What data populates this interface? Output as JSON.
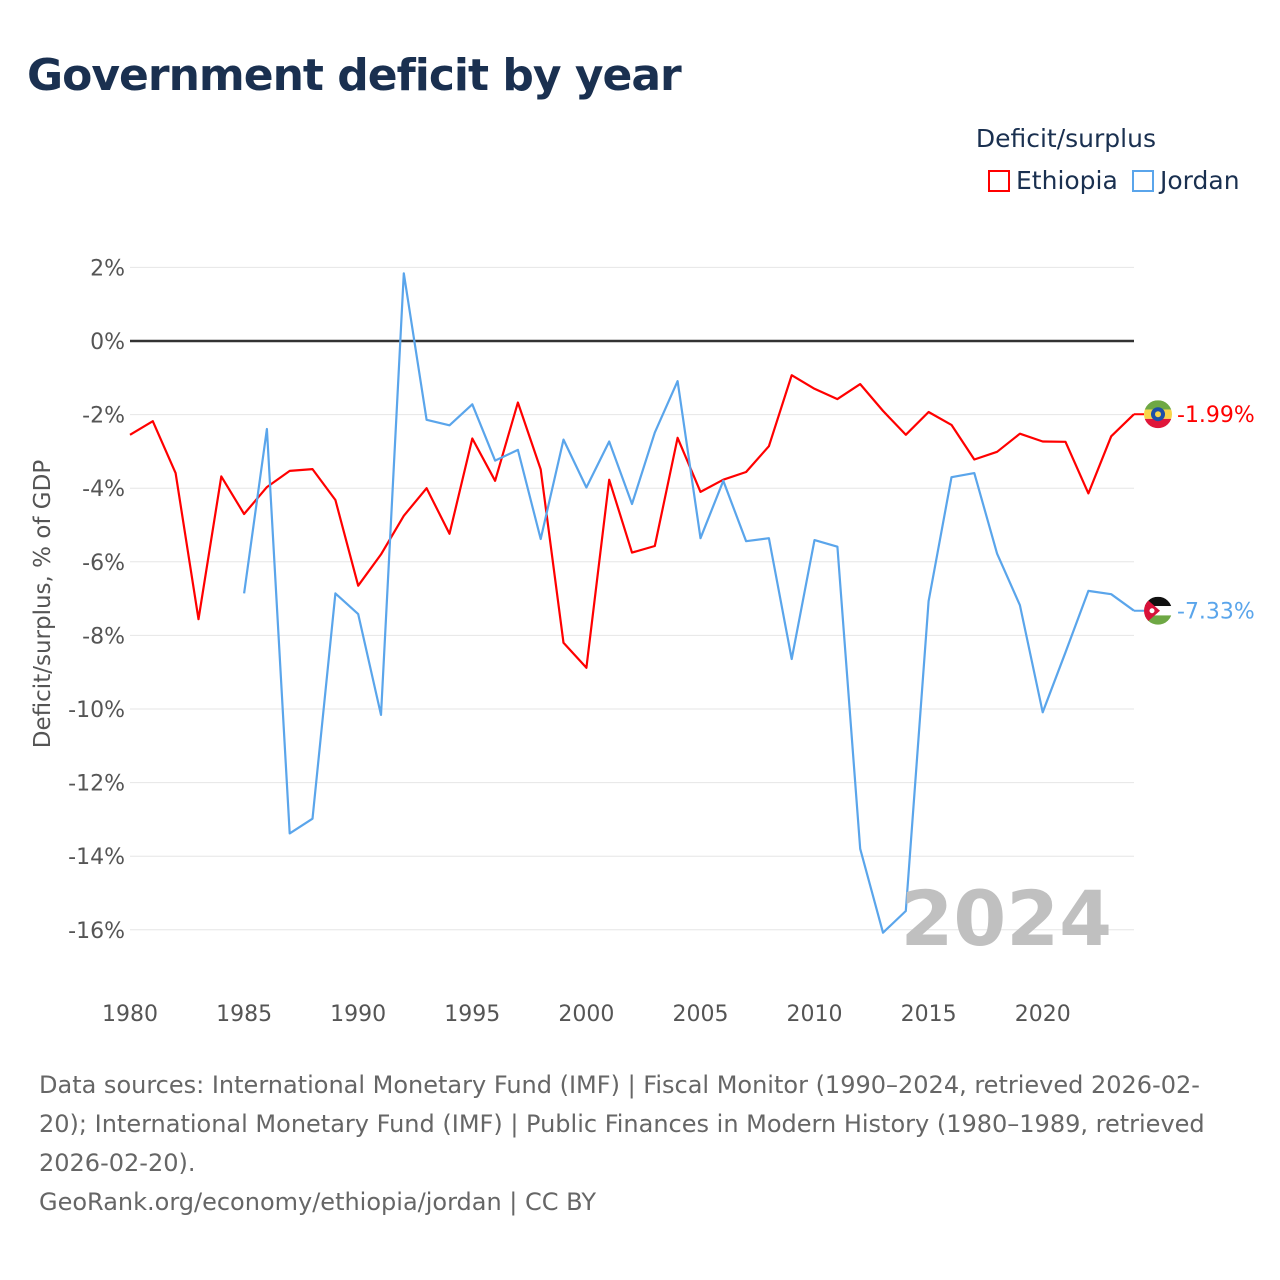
{
  "title": "Government deficit by year",
  "legend": {
    "title": "Deficit/surplus",
    "items": [
      {
        "name": "Ethiopia",
        "color": "#ff0000"
      },
      {
        "name": "Jordan",
        "color": "#5aa5eb"
      }
    ]
  },
  "chart_data": {
    "type": "line",
    "title": "Government deficit by year",
    "xlabel": "",
    "ylabel": "Deficit/surplus, % of GDP",
    "xlim": [
      1980,
      2024
    ],
    "ylim": [
      -16,
      2
    ],
    "x_ticks": [
      "1980",
      "1985",
      "1990",
      "1995",
      "2000",
      "2005",
      "2010",
      "2015",
      "2020"
    ],
    "y_ticks": [
      "2%",
      "0%",
      "-2%",
      "-4%",
      "-6%",
      "-8%",
      "-10%",
      "-12%",
      "-14%",
      "-16%"
    ],
    "grid": true,
    "legend_position": "top-right",
    "year_watermark": "2024",
    "series": [
      {
        "name": "Ethiopia",
        "color": "#ff0000",
        "start_year": 1980,
        "end_label": "-1.99%",
        "values": [
          -2.55,
          -2.18,
          -3.59,
          -7.56,
          -3.68,
          -4.7,
          -3.97,
          -3.53,
          -3.48,
          -4.32,
          -6.65,
          -5.8,
          -4.75,
          -4.0,
          -5.24,
          -2.65,
          -3.8,
          -1.67,
          -3.49,
          -8.2,
          -8.88,
          -3.77,
          -5.75,
          -5.57,
          -2.63,
          -4.1,
          -3.77,
          -3.56,
          -2.86,
          -0.93,
          -1.3,
          -1.58,
          -1.17,
          -1.9,
          -2.55,
          -1.93,
          -2.28,
          -3.22,
          -3.01,
          -2.52,
          -2.73,
          -2.74,
          -4.14,
          -2.59,
          -1.99
        ]
      },
      {
        "name": "Jordan",
        "color": "#5aa5eb",
        "start_year": 1985,
        "end_label": "-7.33%",
        "values": [
          -6.86,
          -2.39,
          -13.38,
          -12.98,
          -6.86,
          -7.42,
          -10.16,
          1.84,
          -2.14,
          -2.29,
          -1.72,
          -3.25,
          -2.96,
          -5.38,
          -2.68,
          -3.98,
          -2.73,
          -4.43,
          -2.49,
          -1.09,
          -5.36,
          -3.8,
          -5.44,
          -5.36,
          -8.64,
          -5.41,
          -5.59,
          -13.8,
          -16.08,
          -15.49,
          -7.07,
          -3.7,
          -3.59,
          -5.78,
          -7.18,
          -10.09,
          -8.46,
          -6.79,
          -6.88,
          -7.33
        ]
      }
    ]
  },
  "footer": {
    "sources": "Data sources: International Monetary Fund (IMF) | Fiscal Monitor (1990–2024, retrieved 2026-02-20); International Monetary Fund (IMF) | Public Finances in Modern History (1980–1989, retrieved 2026-02-20).",
    "credit": "GeoRank.org/economy/ethiopia/jordan | CC BY"
  }
}
